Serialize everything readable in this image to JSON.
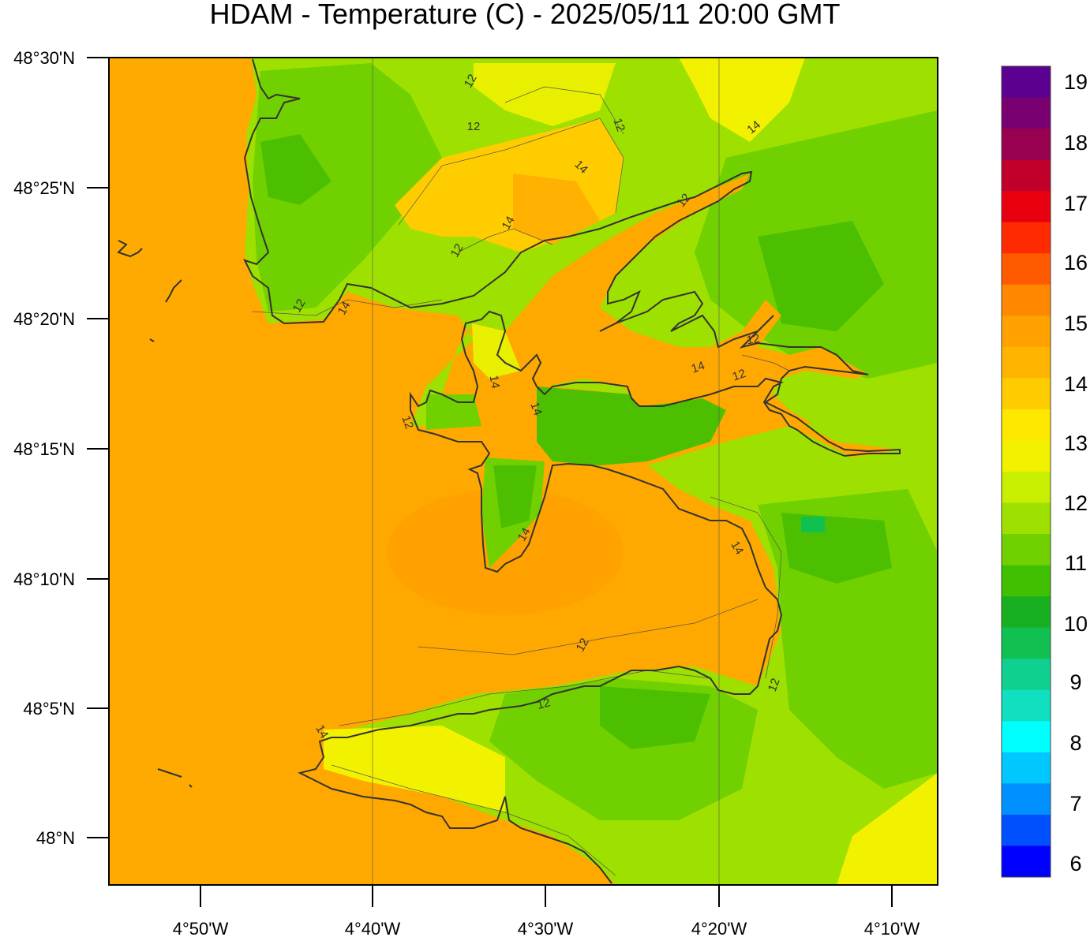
{
  "title": "HDAM - Temperature (C)  -  2025/05/11  20:00 GMT",
  "y_axis": {
    "labels": [
      "48°30'N",
      "48°25'N",
      "48°20'N",
      "48°15'N",
      "48°10'N",
      "48°5'N",
      "48°N"
    ]
  },
  "x_axis": {
    "labels": [
      "4°50'W",
      "4°40'W",
      "4°30'W",
      "4°20'W",
      "4°10'W"
    ]
  },
  "colorbar": {
    "labels": [
      "19",
      "18",
      "17",
      "16",
      "15",
      "14",
      "13",
      "12",
      "11",
      "10",
      "9",
      "8",
      "7",
      "6"
    ],
    "stops": [
      "#5b0090",
      "#790070",
      "#980050",
      "#c0002a",
      "#e80010",
      "#ff2a00",
      "#ff5a00",
      "#ff8800",
      "#ffa200",
      "#ffb400",
      "#ffcc00",
      "#ffe800",
      "#f2f200",
      "#c8ee00",
      "#9ee000",
      "#70d000",
      "#40c000",
      "#18b020",
      "#10c050",
      "#10d090",
      "#10e0c0",
      "#00ffff",
      "#00c8ff",
      "#0090ff",
      "#0050ff",
      "#0000ff"
    ]
  },
  "contour_labels": [
    "12",
    "12",
    "12",
    "14",
    "14",
    "12",
    "12",
    "14",
    "14",
    "12",
    "14",
    "12",
    "12",
    "14",
    "12",
    "14",
    "14",
    "14",
    "12",
    "12",
    "14",
    "12"
  ],
  "colors": {
    "sea": "#ffa500",
    "sea_warm": "#ff9a00",
    "land_green": "#7ad400",
    "land_dark": "#4cc000",
    "land_light": "#c8ee00",
    "land_yellow": "#f2f200",
    "coast": "#333333"
  }
}
